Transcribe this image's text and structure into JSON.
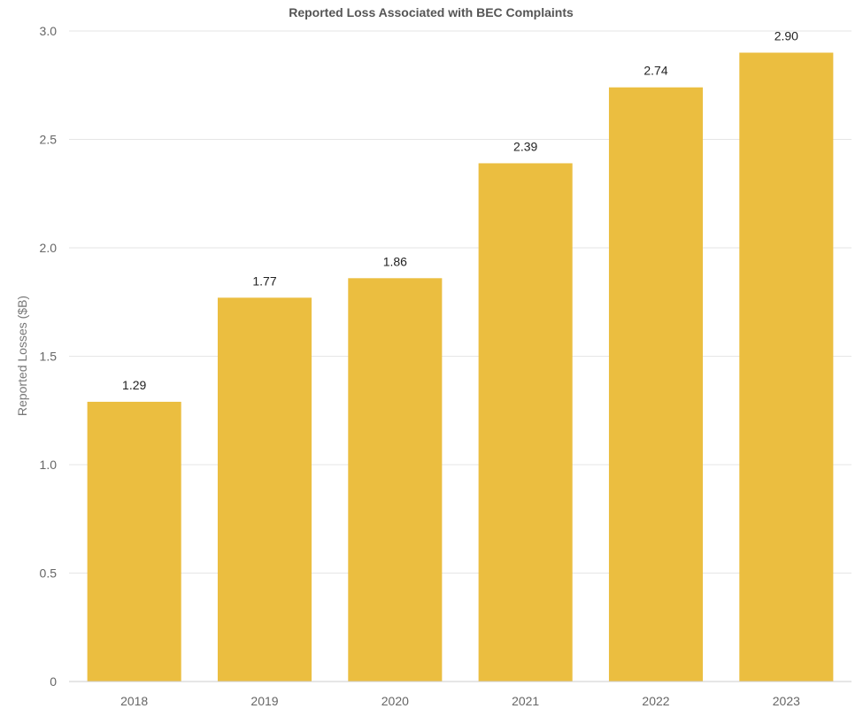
{
  "chart_data": {
    "type": "bar",
    "title": "Reported Loss Associated with BEC Complaints",
    "xlabel": "",
    "ylabel": "Reported Losses ($B)",
    "categories": [
      "2018",
      "2019",
      "2020",
      "2021",
      "2022",
      "2023"
    ],
    "values": [
      1.29,
      1.77,
      1.86,
      2.39,
      2.74,
      2.9
    ],
    "value_labels": [
      "1.29",
      "1.77",
      "1.86",
      "2.39",
      "2.74",
      "2.90"
    ],
    "ylim": [
      0,
      3.0
    ],
    "y_ticks": [
      0,
      0.5,
      1.0,
      1.5,
      2.0,
      2.5,
      3.0
    ],
    "y_tick_labels": [
      "0",
      "0.5",
      "1.0",
      "1.5",
      "2.0",
      "2.5",
      "3.0"
    ],
    "grid": true,
    "legend": "none",
    "bar_color": "#EBBE40"
  }
}
